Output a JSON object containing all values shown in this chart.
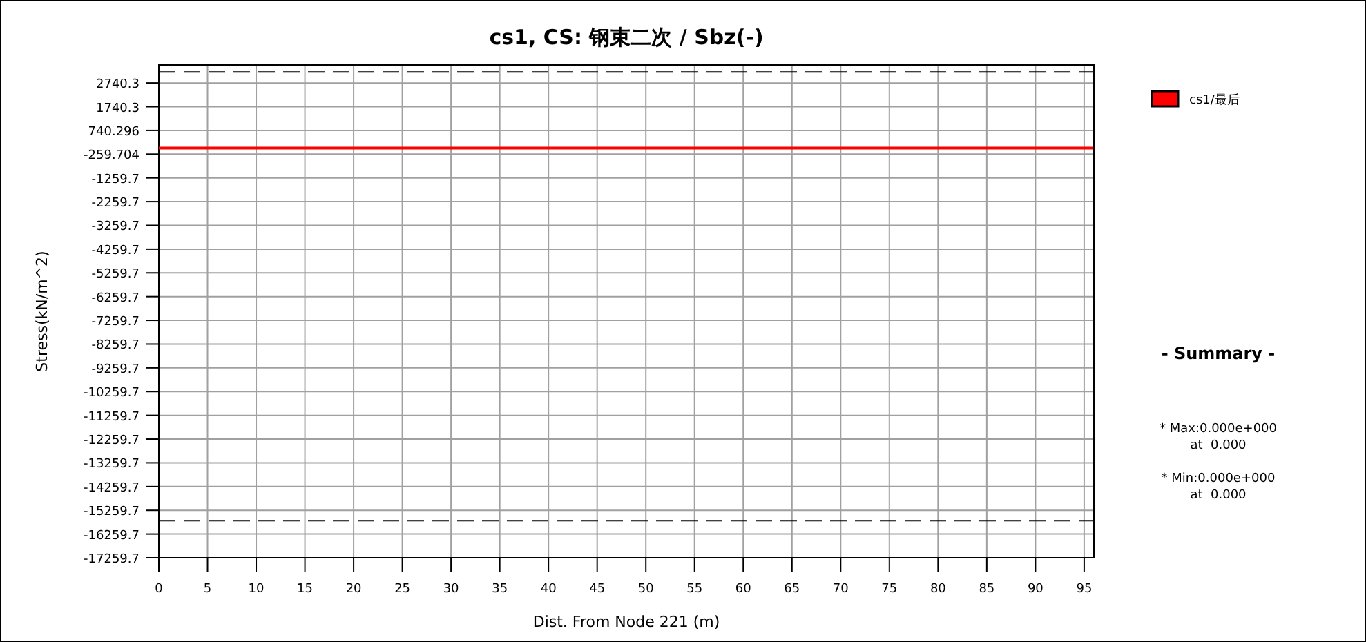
{
  "chart_data": {
    "type": "line",
    "title": "cs1, CS: 钢束二次 / Sbz(-)",
    "xlabel": "Dist. From Node 221 (m)",
    "ylabel": "Stress(kN/m^2)",
    "series": [
      {
        "name": "cs1/最后",
        "color": "#ff0000",
        "x": [
          0,
          95.9
        ],
        "values": [
          0,
          0
        ]
      }
    ],
    "xlim": [
      0,
      96
    ],
    "ylim": [
      -17259.7,
      3500
    ],
    "xticks": [
      0,
      5,
      10,
      15,
      20,
      25,
      30,
      35,
      40,
      45,
      50,
      55,
      60,
      65,
      70,
      75,
      80,
      85,
      90,
      95
    ],
    "yticks": [
      2740.3,
      1740.3,
      740.296,
      -259.704,
      -1259.7,
      -2259.7,
      -3259.7,
      -4259.7,
      -5259.7,
      -6259.7,
      -7259.7,
      -8259.7,
      -9259.7,
      -10259.7,
      -11259.7,
      -12259.7,
      -13259.7,
      -14259.7,
      -15259.7,
      -16259.7,
      -17259.7
    ],
    "ref_lines": [
      {
        "axis": "y",
        "value": 3200,
        "color": "#000000",
        "line_style": "dashed"
      },
      {
        "axis": "y",
        "value": -15700,
        "color": "#000000",
        "line_style": "dashed"
      }
    ],
    "annotations": [
      "- Summary -",
      "* Max:0.000e+000",
      "at  0.000",
      "* Min:0.000e+000",
      "at  0.000"
    ],
    "grid": true,
    "legend": "top right",
    "marker": "none",
    "line_style": "solid"
  }
}
